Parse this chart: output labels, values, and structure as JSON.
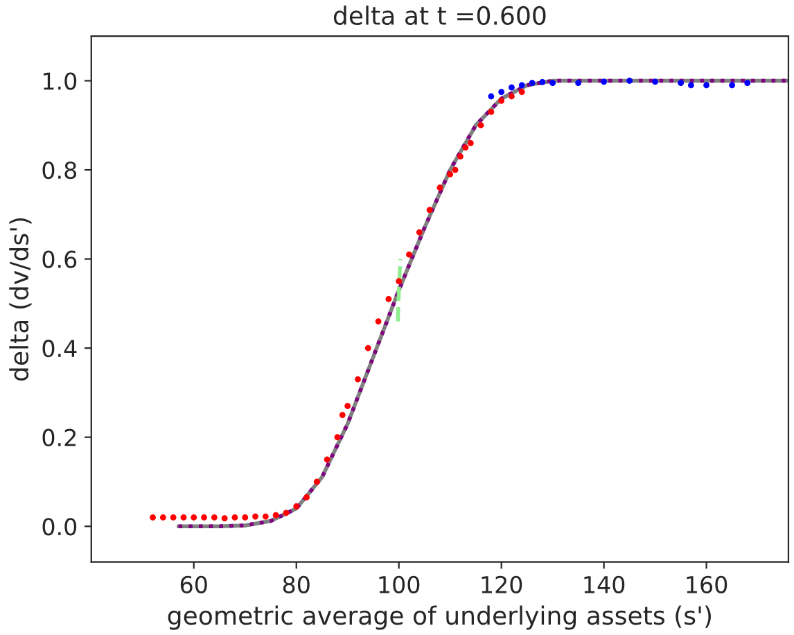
{
  "chart_data": {
    "type": "scatter",
    "title": "delta at t =0.600",
    "xlabel": "geometric average of underlying assets (s')",
    "ylabel": "delta (dv/ds')",
    "xlim": [
      40,
      176
    ],
    "ylim": [
      -0.08,
      1.1
    ],
    "xticks": [
      60,
      80,
      100,
      120,
      140,
      160
    ],
    "yticks": [
      {
        "value": 0,
        "label": "0.0"
      },
      {
        "value": 0.2,
        "label": "0.2"
      },
      {
        "value": 0.4,
        "label": "0.4"
      },
      {
        "value": 0.6,
        "label": "0.6"
      },
      {
        "value": 0.8,
        "label": "0.8"
      },
      {
        "value": 1,
        "label": "1.0"
      }
    ],
    "grid": false,
    "legend": false,
    "series": [
      {
        "type": "line",
        "color": "#808080",
        "line_style": "solid",
        "marker": "none",
        "x": [
          57,
          65,
          70,
          75,
          80,
          85,
          90,
          95,
          100,
          105,
          110,
          115,
          120,
          125,
          130,
          140,
          176
        ],
        "values": [
          0,
          0.0,
          0.002,
          0.012,
          0.04,
          0.11,
          0.23,
          0.38,
          0.53,
          0.67,
          0.8,
          0.9,
          0.96,
          0.99,
          1.0,
          1.0,
          1.0
        ]
      },
      {
        "type": "line",
        "color": "#800080",
        "line_style": "dotted",
        "marker": "none",
        "x": [
          57,
          65,
          70,
          75,
          80,
          85,
          90,
          95,
          100,
          105,
          110,
          115,
          120,
          125,
          130,
          140,
          176
        ],
        "values": [
          0,
          0.0,
          0.002,
          0.012,
          0.04,
          0.11,
          0.23,
          0.38,
          0.53,
          0.67,
          0.8,
          0.9,
          0.96,
          0.99,
          1.0,
          1.0,
          1.0
        ]
      },
      {
        "color": "#ff0000",
        "marker": "circle",
        "x": [
          52,
          54,
          56,
          58,
          60,
          62,
          64,
          66,
          68,
          70,
          72,
          74,
          76,
          78,
          80,
          82,
          84,
          86,
          88,
          89,
          90,
          92,
          94,
          96,
          98,
          100,
          102,
          104,
          106,
          108,
          110,
          111,
          112,
          113,
          114,
          116,
          118,
          120,
          122,
          124
        ],
        "values": [
          0.02,
          0.02,
          0.02,
          0.02,
          0.02,
          0.02,
          0.02,
          0.018,
          0.02,
          0.02,
          0.022,
          0.022,
          0.025,
          0.03,
          0.045,
          0.065,
          0.1,
          0.15,
          0.2,
          0.25,
          0.27,
          0.33,
          0.4,
          0.46,
          0.51,
          0.55,
          0.61,
          0.66,
          0.71,
          0.76,
          0.79,
          0.8,
          0.83,
          0.85,
          0.86,
          0.9,
          0.93,
          0.955,
          0.965,
          0.975
        ]
      },
      {
        "color": "#0000ff",
        "marker": "circle",
        "x": [
          118,
          120,
          122,
          124,
          126,
          128,
          130,
          135,
          140,
          145,
          150,
          155,
          157,
          160,
          165,
          168
        ],
        "values": [
          0.965,
          0.975,
          0.985,
          0.99,
          0.995,
          0.997,
          0.995,
          0.995,
          0.998,
          1.0,
          0.998,
          0.995,
          0.99,
          0.99,
          0.99,
          0.995
        ]
      },
      {
        "type": "line",
        "color": "#90ee90",
        "line_style": "dashed",
        "marker": "none",
        "x": [
          99.8,
          100.0,
          100.3
        ],
        "values": [
          0.46,
          0.53,
          0.6
        ]
      }
    ]
  }
}
